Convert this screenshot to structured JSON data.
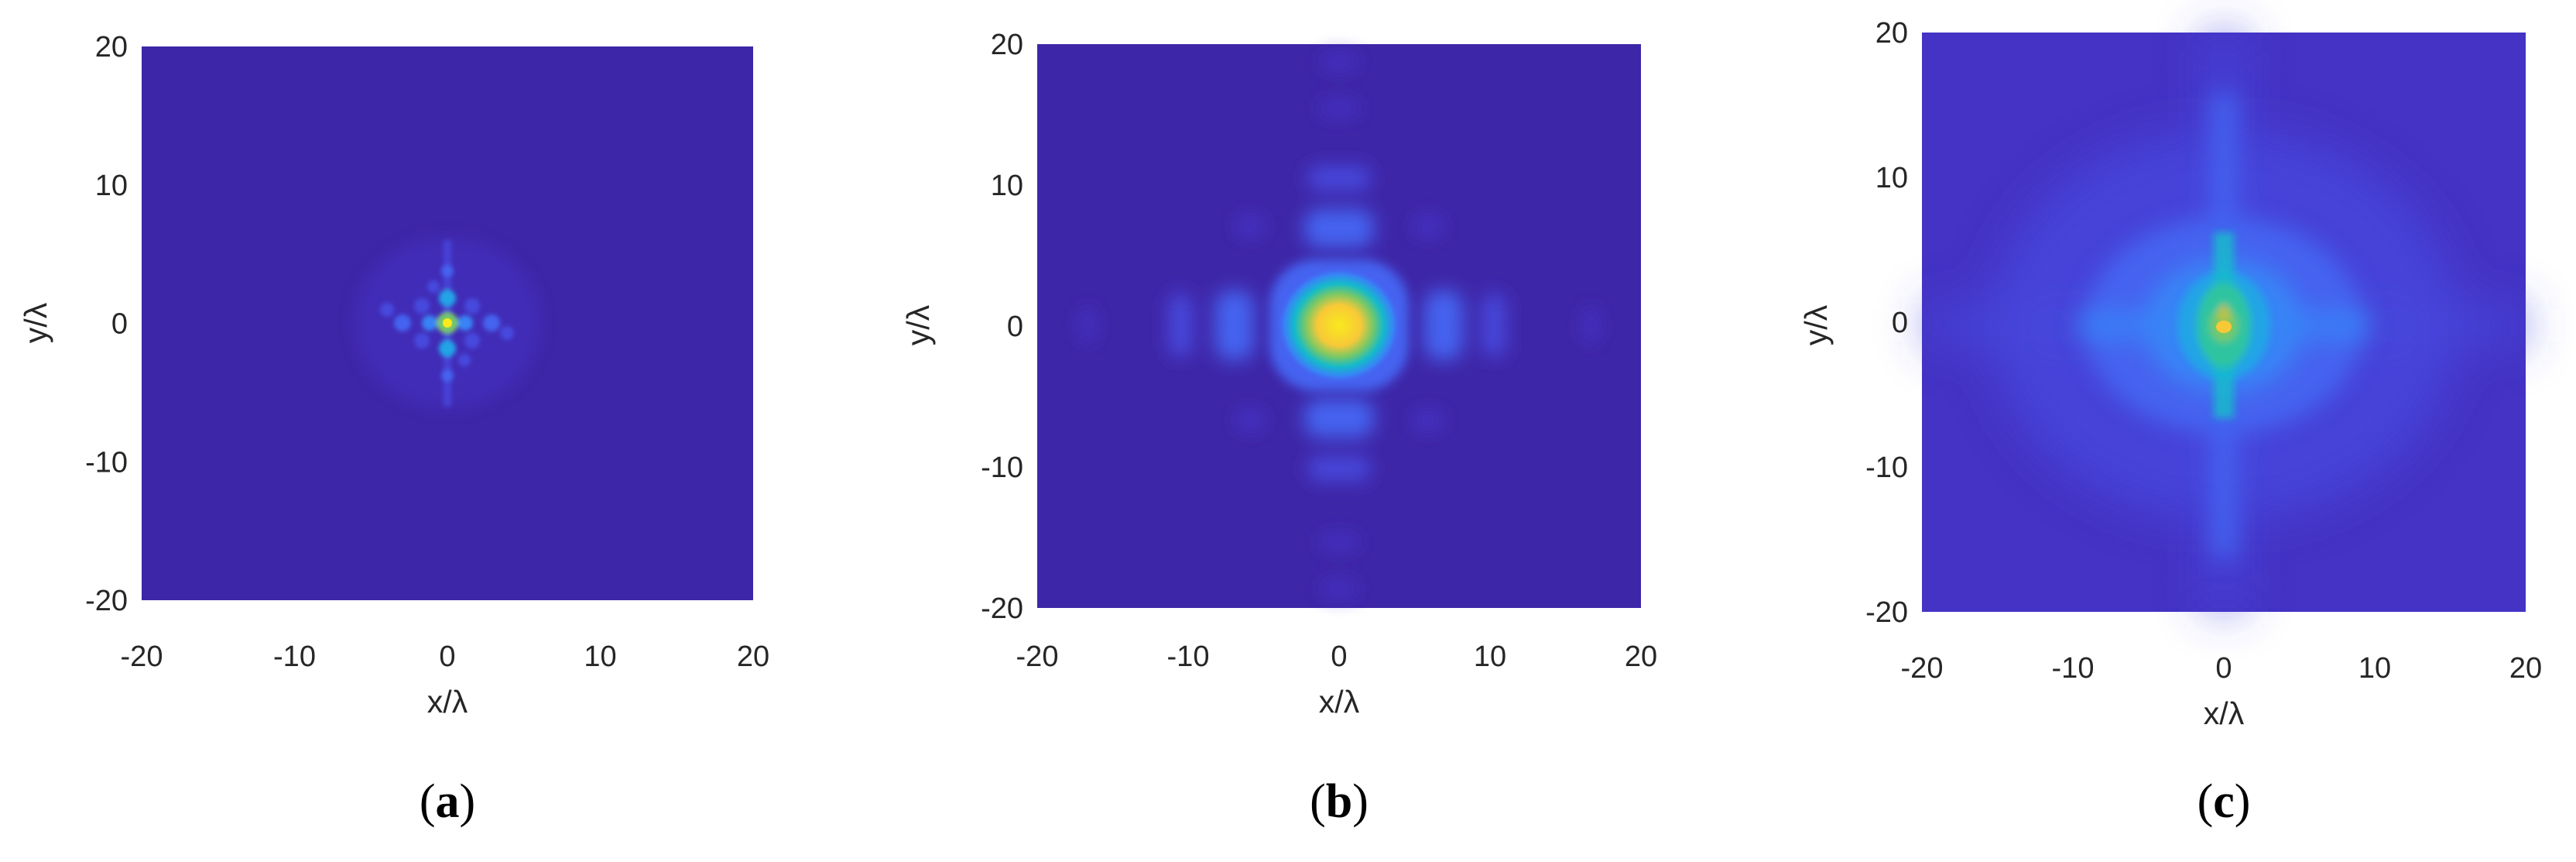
{
  "colors": {
    "background_field": "#3e26a8",
    "colormap": [
      "#3e26a8",
      "#4433c4",
      "#4748de",
      "#4463f0",
      "#3884f6",
      "#22a4e6",
      "#14bacb",
      "#2fc4a0",
      "#77c867",
      "#c0c041",
      "#f8c937",
      "#f9e91d"
    ]
  },
  "chart_data": [
    {
      "type": "heatmap",
      "caption": "a",
      "xlabel": "x/λ",
      "ylabel": "y/λ",
      "xlim": [
        -20,
        20
      ],
      "ylim": [
        -20,
        20
      ],
      "x_ticks": [
        "-20",
        "-10",
        "0",
        "10",
        "20"
      ],
      "y_ticks": [
        "20",
        "10",
        "0",
        "-10",
        "-20"
      ],
      "grid": false,
      "legend": "none"
    },
    {
      "type": "heatmap",
      "caption": "b",
      "xlabel": "x/λ",
      "ylabel": "y/λ",
      "xlim": [
        -20,
        20
      ],
      "ylim": [
        -20,
        20
      ],
      "x_ticks": [
        "-20",
        "-10",
        "0",
        "10",
        "20"
      ],
      "y_ticks": [
        "20",
        "10",
        "0",
        "-10",
        "-20"
      ],
      "grid": false,
      "legend": "none"
    },
    {
      "type": "heatmap",
      "caption": "c",
      "xlabel": "x/λ",
      "ylabel": "y/λ",
      "xlim": [
        -20,
        20
      ],
      "ylim": [
        -20,
        20
      ],
      "x_ticks": [
        "-20",
        "-10",
        "0",
        "10",
        "20"
      ],
      "y_ticks": [
        "20",
        "10",
        "0",
        "-10",
        "-20"
      ],
      "grid": false,
      "legend": "none"
    }
  ]
}
